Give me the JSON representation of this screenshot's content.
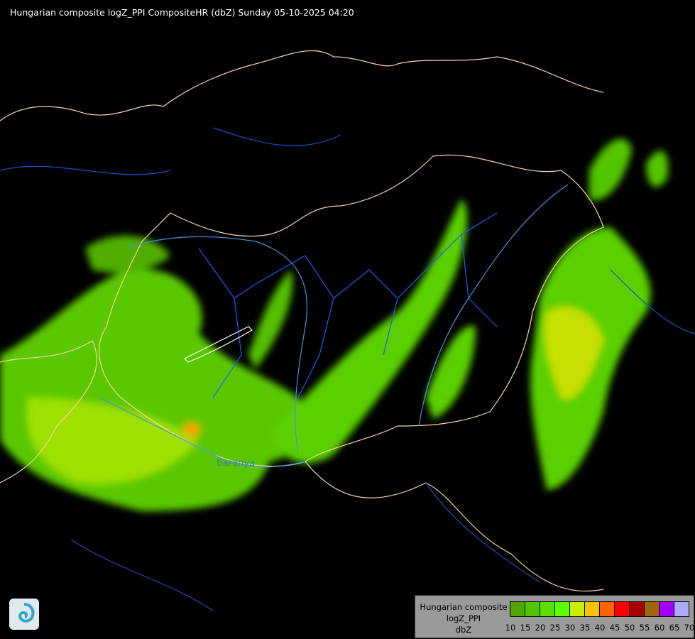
{
  "title": "Hungarian composite logZ_PPI CompositeHR (dbZ) Sunday 05-10-2025 04:20",
  "map_labels": {
    "region": "Baranya"
  },
  "colors": {
    "background": "#000000",
    "country_border": "#f5d6a0",
    "county_border": "#1e5cff",
    "river": "#4a90e0",
    "lake_outline": "#ffffff"
  },
  "legend": {
    "lines": [
      "Hungarian composite",
      "logZ_PPI",
      "dbZ"
    ],
    "colors": [
      "#4fa600",
      "#55c400",
      "#5ae000",
      "#5cff00",
      "#c8ee00",
      "#f5c400",
      "#ff6400",
      "#ff0000",
      "#a80000",
      "#a0640a",
      "#a000ff",
      "#aaaaff"
    ],
    "ticks": [
      "10",
      "15",
      "20",
      "25",
      "30",
      "35",
      "40",
      "45",
      "50",
      "55",
      "60",
      "65",
      "70"
    ]
  },
  "logo_icon": "weather-service-logo-icon"
}
